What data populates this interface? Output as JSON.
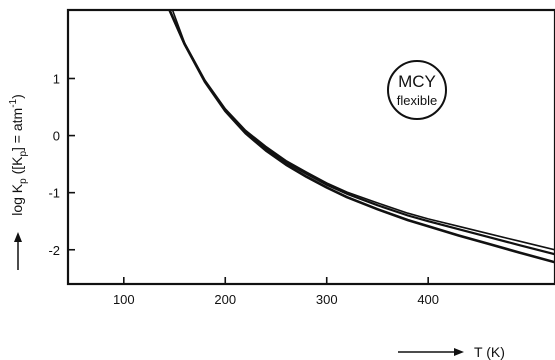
{
  "chart_data": {
    "type": "line",
    "title": "",
    "xlabel": "T (K)",
    "ylabel": "log K_p ([K_p] = atm^-1)",
    "ylabel_parts": {
      "prefix": "log K",
      "sub1": "p",
      "mid": " ([K",
      "sub2": "p",
      "mid2": "] = atm",
      "sup": "-1",
      "suffix": ")"
    },
    "xlim": [
      45,
      525
    ],
    "ylim": [
      -2.6,
      2.2
    ],
    "x_ticks": [
      100,
      200,
      300,
      400
    ],
    "x_tick_labels": [
      "100",
      "200",
      "300",
      "400"
    ],
    "y_ticks": [
      1,
      0,
      -1,
      -2
    ],
    "y_tick_labels": [
      "1",
      "0",
      "-1",
      "-2"
    ],
    "grid": false,
    "annotation": {
      "line1": "MCY",
      "line2": "flexible"
    },
    "series": [
      {
        "x": [
          145,
          160,
          180,
          200,
          220,
          240,
          260,
          280,
          300,
          320,
          350,
          380,
          400,
          430,
          460,
          490,
          525
        ],
        "y": [
          2.2,
          1.6,
          0.95,
          0.45,
          0.07,
          -0.22,
          -0.47,
          -0.67,
          -0.86,
          -1.02,
          -1.22,
          -1.4,
          -1.5,
          -1.64,
          -1.78,
          -1.92,
          -2.08
        ]
      },
      {
        "x": [
          148,
          160,
          180,
          200,
          220,
          240,
          260,
          280,
          300,
          320,
          350,
          380,
          400,
          430,
          460,
          490,
          525
        ],
        "y": [
          2.2,
          1.62,
          0.97,
          0.47,
          0.09,
          -0.19,
          -0.44,
          -0.64,
          -0.83,
          -0.99,
          -1.18,
          -1.36,
          -1.46,
          -1.59,
          -1.72,
          -1.85,
          -2.0
        ]
      },
      {
        "x": [
          145,
          160,
          180,
          200,
          220,
          240,
          260,
          280,
          300,
          320,
          350,
          380,
          400,
          430,
          460,
          490,
          525
        ],
        "y": [
          2.2,
          1.6,
          0.94,
          0.43,
          0.04,
          -0.26,
          -0.51,
          -0.72,
          -0.91,
          -1.08,
          -1.29,
          -1.48,
          -1.59,
          -1.75,
          -1.9,
          -2.05,
          -2.22
        ]
      }
    ]
  }
}
